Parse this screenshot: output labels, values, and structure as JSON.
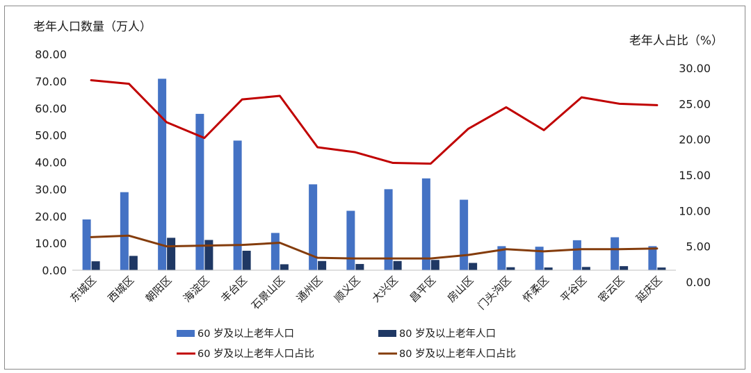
{
  "chart_data": {
    "type": "bar",
    "ylabel_left": "老年人口数量（万人）",
    "ylabel_right": "老年人占比（%）",
    "ylim_left": [
      0,
      80
    ],
    "ylim_right": [
      0,
      30
    ],
    "left_ticks": [
      "0.00",
      "10.00",
      "20.00",
      "30.00",
      "40.00",
      "50.00",
      "60.00",
      "70.00",
      "80.00"
    ],
    "right_ticks": [
      "0.00",
      "5.00",
      "10.00",
      "15.00",
      "20.00",
      "25.00",
      "30.00"
    ],
    "categories": [
      "东城区",
      "西城区",
      "朝阳区",
      "海淀区",
      "丰台区",
      "石景山区",
      "通州区",
      "顺义区",
      "大兴区",
      "昌平区",
      "房山区",
      "门头沟区",
      "怀柔区",
      "平谷区",
      "密云区",
      "延庆区"
    ],
    "series": [
      {
        "name": "60 岁及以上老年人口",
        "kind": "bar",
        "axis": "left",
        "color": "#4472c4",
        "values": [
          18.8,
          28.9,
          70.9,
          57.9,
          48.0,
          13.8,
          31.8,
          22.0,
          30.0,
          34.0,
          26.1,
          8.9,
          8.7,
          11.1,
          12.2,
          8.9
        ]
      },
      {
        "name": "80 岁及以上老年人口",
        "kind": "bar",
        "axis": "left",
        "color": "#1f3864",
        "values": [
          3.3,
          5.3,
          12.0,
          11.2,
          7.2,
          2.2,
          3.4,
          2.3,
          3.4,
          3.8,
          2.7,
          1.1,
          1.0,
          1.2,
          1.5,
          1.0
        ]
      },
      {
        "name": "60 岁及以上老年人口占比",
        "kind": "line",
        "axis": "right",
        "color": "#c00000",
        "values": [
          28.3,
          27.8,
          22.4,
          20.2,
          25.6,
          26.1,
          18.9,
          18.2,
          16.7,
          16.6,
          21.5,
          24.5,
          21.3,
          25.9,
          25.0,
          24.8
        ]
      },
      {
        "name": "80 岁及以上老年人口占比",
        "kind": "line",
        "axis": "right",
        "color": "#843c0c",
        "values": [
          6.3,
          6.5,
          5.0,
          5.1,
          5.2,
          5.5,
          3.4,
          3.3,
          3.3,
          3.3,
          3.8,
          4.6,
          4.3,
          4.6,
          4.6,
          4.7
        ]
      }
    ],
    "legend_position": "bottom",
    "grid": false
  }
}
